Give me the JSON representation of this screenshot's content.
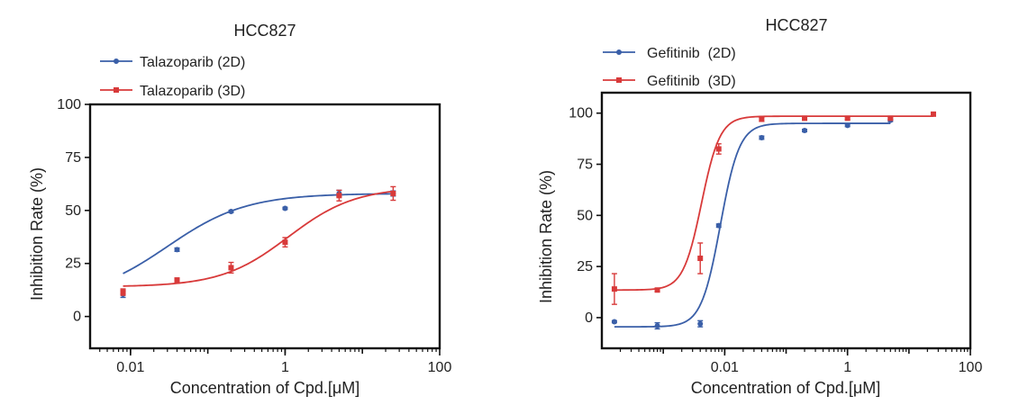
{
  "chart_data": [
    {
      "type": "scatter",
      "title": "HCC827",
      "xlabel": "Concentration of Cpd.[μM]",
      "ylabel": "Inhibition Rate (%)",
      "xscale": "log",
      "xlim": [
        0.003,
        100
      ],
      "ylim": [
        -15,
        100
      ],
      "x_ticks": [
        0.01,
        1,
        100
      ],
      "x_tick_labels": [
        "0.01",
        "1",
        "100"
      ],
      "y_ticks": [
        0,
        25,
        50,
        75,
        100
      ],
      "y_tick_labels": [
        "0",
        "25",
        "50",
        "75",
        "100"
      ],
      "legend_position": "top-left",
      "series": [
        {
          "name": "Talazoparib (2D)",
          "color": "#3a5fa8",
          "marker": "circle",
          "x": [
            0.008,
            0.04,
            0.2,
            1,
            5,
            25
          ],
          "y": [
            10.5,
            31.5,
            49.5,
            51,
            58,
            58
          ],
          "err": [
            1.5,
            0.8,
            0.5,
            0.5,
            1.5,
            1.2
          ],
          "fit": {
            "bottom": 8,
            "top": 58,
            "ec50": 0.03,
            "hill": 0.85
          }
        },
        {
          "name": "Talazoparib (3D)",
          "color": "#d83a3a",
          "marker": "square",
          "x": [
            0.008,
            0.04,
            0.2,
            1,
            5,
            25
          ],
          "y": [
            11.5,
            17,
            23,
            35,
            57,
            58
          ],
          "err": [
            1.5,
            1.2,
            2.5,
            2.2,
            2.5,
            3.2
          ],
          "fit": {
            "bottom": 14,
            "top": 61,
            "ec50": 1.1,
            "hill": 1.0
          }
        }
      ]
    },
    {
      "type": "scatter",
      "title": "HCC827",
      "xlabel": "Concentration of Cpd.[μM]",
      "ylabel": "Inhibition Rate (%)",
      "xscale": "log",
      "xlim": [
        0.0001,
        100
      ],
      "ylim": [
        -15,
        110
      ],
      "x_ticks": [
        0.01,
        1,
        100
      ],
      "x_tick_labels": [
        "0.01",
        "1",
        "100"
      ],
      "y_ticks": [
        0,
        25,
        50,
        75,
        100
      ],
      "y_tick_labels": [
        "0",
        "25",
        "50",
        "75",
        "100"
      ],
      "legend_position": "top-left",
      "series": [
        {
          "name": "Gefitinib  (2D)",
          "color": "#3a5fa8",
          "marker": "circle",
          "x": [
            0.00016,
            0.0008,
            0.004,
            0.008,
            0.04,
            0.2,
            1,
            5
          ],
          "y": [
            -2,
            -4,
            -3,
            45,
            88,
            91.5,
            94,
            96.5
          ],
          "err": [
            0.5,
            1.5,
            1.5,
            0.8,
            0.8,
            0.6,
            0.6,
            0.6
          ],
          "fit": {
            "bottom": -4.5,
            "top": 95,
            "ec50": 0.0085,
            "hill": 2.8
          }
        },
        {
          "name": "Gefitinib  (3D)",
          "color": "#d83a3a",
          "marker": "square",
          "x": [
            0.00016,
            0.0008,
            0.004,
            0.008,
            0.04,
            0.2,
            1,
            5,
            25
          ],
          "y": [
            14,
            13.5,
            29,
            82.5,
            97,
            97.5,
            97.5,
            97.5,
            99.5
          ],
          "err": [
            7.5,
            0.8,
            7.5,
            2.5,
            1,
            0.6,
            0.6,
            0.6,
            0.8
          ],
          "fit": {
            "bottom": 13.5,
            "top": 98.5,
            "ec50": 0.0042,
            "hill": 2.9
          }
        }
      ]
    }
  ]
}
